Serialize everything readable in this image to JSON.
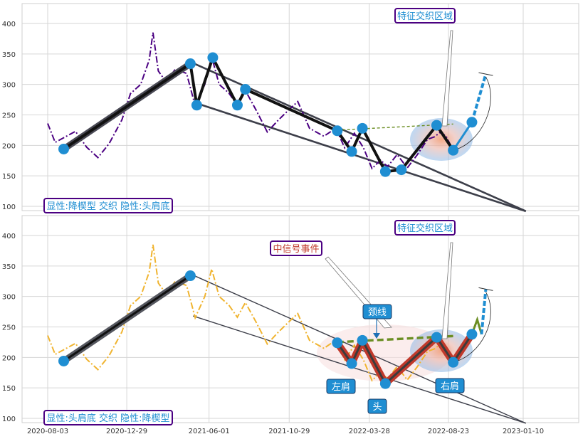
{
  "chart_data": [
    {
      "type": "line",
      "x_axis": {
        "type": "date",
        "range": [
          "2020-06-25",
          "2023-04-10"
        ],
        "tick_labels": []
      },
      "y_axis": {
        "range": [
          92,
          432
        ],
        "ticks": [
          100,
          150,
          200,
          250,
          300,
          350,
          400
        ]
      },
      "grid": true,
      "price_color": "#4b0082",
      "price_style": "dash-dot",
      "price_path": [
        {
          "x": "2020-08-03",
          "y": 236
        },
        {
          "x": "2020-08-17",
          "y": 205
        },
        {
          "x": "2020-09-07",
          "y": 215
        },
        {
          "x": "2020-09-24",
          "y": 223
        },
        {
          "x": "2020-10-15",
          "y": 197
        },
        {
          "x": "2020-11-05",
          "y": 180
        },
        {
          "x": "2020-11-26",
          "y": 203
        },
        {
          "x": "2020-12-20",
          "y": 242
        },
        {
          "x": "2021-01-05",
          "y": 285
        },
        {
          "x": "2021-01-24",
          "y": 300
        },
        {
          "x": "2021-02-09",
          "y": 340
        },
        {
          "x": "2021-02-16",
          "y": 385
        },
        {
          "x": "2021-02-26",
          "y": 322
        },
        {
          "x": "2021-03-12",
          "y": 305
        },
        {
          "x": "2021-03-30",
          "y": 325
        },
        {
          "x": "2021-04-20",
          "y": 318
        },
        {
          "x": "2021-05-06",
          "y": 265
        },
        {
          "x": "2021-05-24",
          "y": 300
        },
        {
          "x": "2021-06-06",
          "y": 345
        },
        {
          "x": "2021-06-20",
          "y": 300
        },
        {
          "x": "2021-07-08",
          "y": 286
        },
        {
          "x": "2021-07-24",
          "y": 266
        },
        {
          "x": "2021-08-08",
          "y": 290
        },
        {
          "x": "2021-08-28",
          "y": 258
        },
        {
          "x": "2021-09-18",
          "y": 222
        },
        {
          "x": "2021-10-07",
          "y": 240
        },
        {
          "x": "2021-10-28",
          "y": 258
        },
        {
          "x": "2021-11-14",
          "y": 272
        },
        {
          "x": "2021-12-06",
          "y": 228
        },
        {
          "x": "2022-01-02",
          "y": 215
        },
        {
          "x": "2022-01-24",
          "y": 228
        },
        {
          "x": "2022-02-10",
          "y": 196
        },
        {
          "x": "2022-02-28",
          "y": 220
        },
        {
          "x": "2022-03-17",
          "y": 196
        },
        {
          "x": "2022-04-02",
          "y": 162
        },
        {
          "x": "2022-04-18",
          "y": 176
        },
        {
          "x": "2022-05-01",
          "y": 165
        },
        {
          "x": "2022-05-19",
          "y": 185
        },
        {
          "x": "2022-06-07",
          "y": 163
        },
        {
          "x": "2022-06-26",
          "y": 185
        },
        {
          "x": "2022-07-15",
          "y": 210
        },
        {
          "x": "2022-07-28",
          "y": 214
        },
        {
          "x": "2022-08-07",
          "y": 221
        },
        {
          "x": "2022-08-18",
          "y": 216
        },
        {
          "x": "2022-08-29",
          "y": 197
        }
      ],
      "pattern_path": [
        {
          "x": "2020-09-02",
          "y": 194
        },
        {
          "x": "2021-04-27",
          "y": 334
        },
        {
          "x": "2021-05-09",
          "y": 266
        },
        {
          "x": "2021-06-08",
          "y": 344
        },
        {
          "x": "2021-07-24",
          "y": 266
        },
        {
          "x": "2021-08-08",
          "y": 292
        },
        {
          "x": "2022-01-27",
          "y": 224
        },
        {
          "x": "2022-02-23",
          "y": 190
        },
        {
          "x": "2022-03-15",
          "y": 228
        },
        {
          "x": "2022-04-27",
          "y": 157
        },
        {
          "x": "2022-05-27",
          "y": 160
        },
        {
          "x": "2022-08-01",
          "y": 233
        },
        {
          "x": "2022-09-01",
          "y": 192
        }
      ],
      "markers": [
        {
          "x": "2020-09-02",
          "y": 194
        },
        {
          "x": "2021-04-27",
          "y": 334
        },
        {
          "x": "2021-05-09",
          "y": 266
        },
        {
          "x": "2021-06-08",
          "y": 344
        },
        {
          "x": "2021-07-24",
          "y": 266
        },
        {
          "x": "2021-08-08",
          "y": 292
        },
        {
          "x": "2022-01-27",
          "y": 224
        },
        {
          "x": "2022-02-23",
          "y": 190
        },
        {
          "x": "2022-03-15",
          "y": 228
        },
        {
          "x": "2022-04-27",
          "y": 157
        },
        {
          "x": "2022-05-27",
          "y": 160
        },
        {
          "x": "2022-08-01",
          "y": 233
        },
        {
          "x": "2022-09-01",
          "y": 192
        },
        {
          "x": "2022-10-06",
          "y": 238
        }
      ],
      "trend_lines": [
        {
          "from": {
            "x": "2021-05-02",
            "y": 335
          },
          "to": {
            "x": "2023-01-15",
            "y": 92
          }
        },
        {
          "from": {
            "x": "2021-05-02",
            "y": 271
          },
          "to": {
            "x": "2023-01-15",
            "y": 92
          }
        }
      ],
      "neckline": {
        "from": {
          "x": "2022-01-27",
          "y": 225
        },
        "to": {
          "x": "2022-09-01",
          "y": 235
        }
      },
      "projection": {
        "from": {
          "x": "2022-09-01",
          "y": 192
        },
        "to": {
          "x": "2022-11-01",
          "y": 317
        }
      },
      "textbox": {
        "label": "显性:降楔型 交织 隐性:头肩底"
      },
      "callouts": [
        {
          "label": "特征交织区域",
          "kind": "box"
        }
      ]
    },
    {
      "type": "line",
      "x_axis": {
        "type": "date",
        "range": [
          "2020-06-25",
          "2023-04-10"
        ],
        "tick_labels": [
          "2020-08-03",
          "2020-12-29",
          "2021-06-01",
          "2021-10-29",
          "2022-03-28",
          "2022-08-23",
          "2023-01-10"
        ]
      },
      "y_axis": {
        "range": [
          92,
          432
        ],
        "ticks": [
          100,
          150,
          200,
          250,
          300,
          350,
          400
        ]
      },
      "grid": true,
      "price_color": "#f0b430",
      "price_style": "dash-dot",
      "price_path": [
        {
          "x": "2020-08-03",
          "y": 236
        },
        {
          "x": "2020-08-17",
          "y": 205
        },
        {
          "x": "2020-09-07",
          "y": 215
        },
        {
          "x": "2020-09-24",
          "y": 223
        },
        {
          "x": "2020-10-15",
          "y": 197
        },
        {
          "x": "2020-11-05",
          "y": 180
        },
        {
          "x": "2020-11-26",
          "y": 203
        },
        {
          "x": "2020-12-20",
          "y": 242
        },
        {
          "x": "2021-01-05",
          "y": 285
        },
        {
          "x": "2021-01-24",
          "y": 300
        },
        {
          "x": "2021-02-09",
          "y": 340
        },
        {
          "x": "2021-02-16",
          "y": 385
        },
        {
          "x": "2021-02-26",
          "y": 322
        },
        {
          "x": "2021-03-12",
          "y": 305
        },
        {
          "x": "2021-03-30",
          "y": 325
        },
        {
          "x": "2021-04-20",
          "y": 318
        },
        {
          "x": "2021-05-06",
          "y": 265
        },
        {
          "x": "2021-05-24",
          "y": 300
        },
        {
          "x": "2021-06-06",
          "y": 345
        },
        {
          "x": "2021-06-20",
          "y": 300
        },
        {
          "x": "2021-07-08",
          "y": 286
        },
        {
          "x": "2021-07-24",
          "y": 266
        },
        {
          "x": "2021-08-08",
          "y": 290
        },
        {
          "x": "2021-08-28",
          "y": 258
        },
        {
          "x": "2021-09-18",
          "y": 222
        },
        {
          "x": "2021-10-07",
          "y": 240
        },
        {
          "x": "2021-10-28",
          "y": 258
        },
        {
          "x": "2021-11-14",
          "y": 272
        },
        {
          "x": "2021-12-06",
          "y": 228
        },
        {
          "x": "2022-01-02",
          "y": 215
        },
        {
          "x": "2022-01-24",
          "y": 228
        },
        {
          "x": "2022-02-10",
          "y": 196
        },
        {
          "x": "2022-02-28",
          "y": 220
        },
        {
          "x": "2022-03-17",
          "y": 196
        },
        {
          "x": "2022-04-02",
          "y": 162
        },
        {
          "x": "2022-04-18",
          "y": 176
        },
        {
          "x": "2022-05-01",
          "y": 165
        },
        {
          "x": "2022-05-19",
          "y": 185
        },
        {
          "x": "2022-06-07",
          "y": 163
        },
        {
          "x": "2022-06-26",
          "y": 185
        },
        {
          "x": "2022-07-15",
          "y": 210
        },
        {
          "x": "2022-07-28",
          "y": 214
        },
        {
          "x": "2022-08-07",
          "y": 221
        },
        {
          "x": "2022-08-18",
          "y": 216
        },
        {
          "x": "2022-08-29",
          "y": 197
        }
      ],
      "pattern_path": [
        {
          "x": "2022-01-27",
          "y": 224
        },
        {
          "x": "2022-02-23",
          "y": 190
        },
        {
          "x": "2022-03-15",
          "y": 228
        },
        {
          "x": "2022-04-27",
          "y": 157
        },
        {
          "x": "2022-08-01",
          "y": 233
        },
        {
          "x": "2022-09-01",
          "y": 192
        },
        {
          "x": "2022-10-06",
          "y": 238
        }
      ],
      "markers": [
        {
          "x": "2020-09-02",
          "y": 194
        },
        {
          "x": "2021-04-27",
          "y": 334
        },
        {
          "x": "2022-01-27",
          "y": 224
        },
        {
          "x": "2022-02-23",
          "y": 190
        },
        {
          "x": "2022-03-15",
          "y": 228
        },
        {
          "x": "2022-04-27",
          "y": 157
        },
        {
          "x": "2022-08-01",
          "y": 233
        },
        {
          "x": "2022-09-01",
          "y": 192
        },
        {
          "x": "2022-10-06",
          "y": 238
        }
      ],
      "trend_lines": [
        {
          "from": {
            "x": "2021-05-02",
            "y": 335
          },
          "to": {
            "x": "2023-01-15",
            "y": 92
          }
        },
        {
          "from": {
            "x": "2021-05-02",
            "y": 268
          },
          "to": {
            "x": "2023-01-15",
            "y": 92
          }
        }
      ],
      "neckline": {
        "from": {
          "x": "2022-01-27",
          "y": 225
        },
        "to": {
          "x": "2022-09-01",
          "y": 235
        }
      },
      "projection": {
        "from": {
          "x": "2022-10-06",
          "y": 238
        },
        "to": {
          "x": "2022-11-01",
          "y": 312
        }
      },
      "textbox": {
        "label": "显性:头肩底 交织 隐性:降楔型"
      },
      "callouts": [
        {
          "label": "特征交织区域",
          "kind": "box"
        },
        {
          "label": "中信号事件",
          "kind": "box"
        },
        {
          "label": "颈线",
          "kind": "tag"
        },
        {
          "label": "左肩",
          "kind": "tag"
        },
        {
          "label": "头",
          "kind": "tag"
        },
        {
          "label": "右肩",
          "kind": "tag"
        }
      ]
    }
  ]
}
